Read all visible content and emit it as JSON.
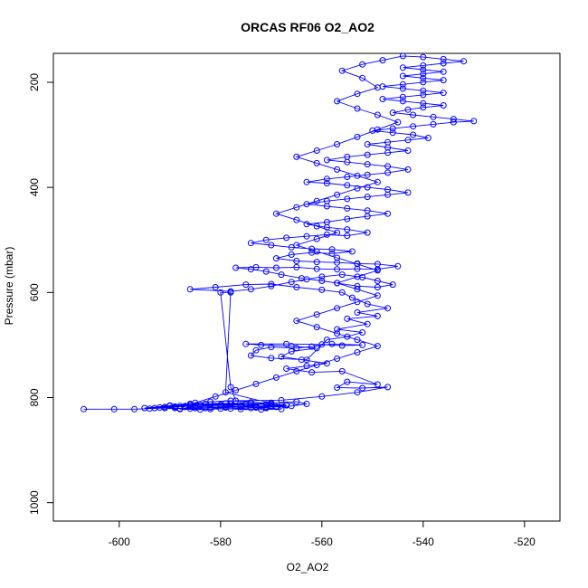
{
  "chart_data": {
    "type": "scatter",
    "title": "ORCAS RF06 O2_AO2",
    "xlabel": "O2_AO2",
    "ylabel": "Pressure (mbar)",
    "xlim": [
      -613,
      -513
    ],
    "ylim": [
      1035,
      145
    ],
    "y_axis_reversed": true,
    "xticks": [
      -600,
      -580,
      -560,
      -540,
      -520
    ],
    "yticks": [
      200,
      400,
      600,
      800,
      1000
    ],
    "grid": false,
    "legend": "none",
    "series": [
      {
        "style": "points-connected-by-lines",
        "marker": "open-circle",
        "color": "#0000ff",
        "points": [
          [
            -607,
            822
          ],
          [
            -601,
            822
          ],
          [
            -597,
            822
          ],
          [
            -594,
            821
          ],
          [
            -591,
            820
          ],
          [
            -588,
            821
          ],
          [
            -585,
            820
          ],
          [
            -582,
            819
          ],
          [
            -579,
            818
          ],
          [
            -576,
            818
          ],
          [
            -573,
            817
          ],
          [
            -570,
            816
          ],
          [
            -568,
            815
          ],
          [
            -571,
            819
          ],
          [
            -574,
            820
          ],
          [
            -578,
            821
          ],
          [
            -582,
            822
          ],
          [
            -586,
            821
          ],
          [
            -589,
            820
          ],
          [
            -591,
            818
          ],
          [
            -588,
            816
          ],
          [
            -584,
            815
          ],
          [
            -580,
            814
          ],
          [
            -576,
            815
          ],
          [
            -572,
            816
          ],
          [
            -569,
            817
          ],
          [
            -567,
            814
          ],
          [
            -571,
            813
          ],
          [
            -575,
            812
          ],
          [
            -579,
            811
          ],
          [
            -583,
            812
          ],
          [
            -586,
            814
          ],
          [
            -590,
            815
          ],
          [
            -587,
            818
          ],
          [
            -583,
            820
          ],
          [
            -579,
            819
          ],
          [
            -575,
            818
          ],
          [
            -571,
            820
          ],
          [
            -568,
            822
          ],
          [
            -572,
            823
          ],
          [
            -576,
            822
          ],
          [
            -580,
            821
          ],
          [
            -584,
            823
          ],
          [
            -588,
            822
          ],
          [
            -585,
            817
          ],
          [
            -581,
            816
          ],
          [
            -577,
            817
          ],
          [
            -573,
            819
          ],
          [
            -569,
            818
          ],
          [
            -566,
            816
          ],
          [
            -563,
            812
          ],
          [
            -565,
            808
          ],
          [
            -570,
            810
          ],
          [
            -575,
            813
          ],
          [
            -580,
            814
          ],
          [
            -584,
            815
          ],
          [
            -587,
            816
          ],
          [
            -589,
            817
          ],
          [
            -592,
            819
          ],
          [
            -595,
            820
          ],
          [
            -586,
            812
          ],
          [
            -582,
            808
          ],
          [
            -578,
            806
          ],
          [
            -574,
            809
          ],
          [
            -570,
            811
          ],
          [
            -579,
            790
          ],
          [
            -578,
            600
          ],
          [
            -580,
            600
          ],
          [
            -578,
            780
          ],
          [
            -577,
            806
          ],
          [
            -568,
            805
          ],
          [
            -560,
            798
          ],
          [
            -553,
            790
          ],
          [
            -547,
            780
          ],
          [
            -552,
            782
          ],
          [
            -557,
            781
          ],
          [
            -555,
            770
          ],
          [
            -549,
            775
          ],
          [
            -556,
            750
          ],
          [
            -562,
            752
          ],
          [
            -567,
            745
          ],
          [
            -563,
            740
          ],
          [
            -559,
            735
          ],
          [
            -564,
            728
          ],
          [
            -568,
            722
          ],
          [
            -566,
            712
          ],
          [
            -561,
            706
          ],
          [
            -566,
            702
          ],
          [
            -572,
            700
          ],
          [
            -575,
            698
          ],
          [
            -567,
            698
          ],
          [
            -560,
            699
          ],
          [
            -556,
            701
          ],
          [
            -552,
            700
          ],
          [
            -558,
            698
          ],
          [
            -562,
            703
          ],
          [
            -565,
            706
          ],
          [
            -570,
            704
          ],
          [
            -573,
            710
          ],
          [
            -574,
            720
          ],
          [
            -570,
            725
          ],
          [
            -563,
            728
          ],
          [
            -559,
            690
          ],
          [
            -555,
            684
          ],
          [
            -552,
            676
          ],
          [
            -557,
            670
          ],
          [
            -551,
            660
          ],
          [
            -555,
            650
          ],
          [
            -549,
            645
          ],
          [
            -553,
            638
          ],
          [
            -547,
            630
          ],
          [
            -551,
            622
          ],
          [
            -554,
            610
          ],
          [
            -556,
            600
          ],
          [
            -560,
            595
          ],
          [
            -565,
            590
          ],
          [
            -570,
            584
          ],
          [
            -575,
            585
          ],
          [
            -581,
            590
          ],
          [
            -586,
            594
          ],
          [
            -578,
            598
          ],
          [
            -574,
            594
          ],
          [
            -570,
            588
          ],
          [
            -566,
            580
          ],
          [
            -563,
            575
          ],
          [
            -560,
            570
          ],
          [
            -556,
            566
          ],
          [
            -552,
            571
          ],
          [
            -549,
            578
          ],
          [
            -546,
            585
          ],
          [
            -549,
            590
          ],
          [
            -553,
            588
          ],
          [
            -557,
            582
          ],
          [
            -560,
            578
          ],
          [
            -564,
            573
          ],
          [
            -568,
            566
          ],
          [
            -571,
            560
          ],
          [
            -574,
            556
          ],
          [
            -577,
            553
          ],
          [
            -573,
            552
          ],
          [
            -569,
            553
          ],
          [
            -565,
            552
          ],
          [
            -561,
            555
          ],
          [
            -557,
            556
          ],
          [
            -553,
            555
          ],
          [
            -549,
            556
          ],
          [
            -545,
            550
          ],
          [
            -549,
            546
          ],
          [
            -553,
            545
          ],
          [
            -557,
            543
          ],
          [
            -561,
            542
          ],
          [
            -565,
            540
          ],
          [
            -569,
            535
          ],
          [
            -566,
            528
          ],
          [
            -562,
            524
          ],
          [
            -558,
            526
          ],
          [
            -554,
            522
          ],
          [
            -558,
            518
          ],
          [
            -562,
            517
          ],
          [
            -566,
            514
          ],
          [
            -570,
            510
          ],
          [
            -574,
            506
          ],
          [
            -571,
            500
          ],
          [
            -567,
            496
          ],
          [
            -563,
            493
          ],
          [
            -559,
            490
          ],
          [
            -555,
            492
          ],
          [
            -551,
            486
          ],
          [
            -555,
            480
          ],
          [
            -559,
            476
          ],
          [
            -563,
            470
          ],
          [
            -559,
            466
          ],
          [
            -555,
            460
          ],
          [
            -551,
            455
          ],
          [
            -547,
            450
          ],
          [
            -551,
            444
          ],
          [
            -555,
            440
          ],
          [
            -559,
            436
          ],
          [
            -563,
            432
          ],
          [
            -559,
            426
          ],
          [
            -555,
            422
          ],
          [
            -551,
            418
          ],
          [
            -547,
            414
          ],
          [
            -543,
            410
          ],
          [
            -547,
            404
          ],
          [
            -551,
            400
          ],
          [
            -555,
            396
          ],
          [
            -559,
            392
          ],
          [
            -563,
            390
          ],
          [
            -559,
            384
          ],
          [
            -555,
            380
          ],
          [
            -551,
            376
          ],
          [
            -547,
            372
          ],
          [
            -543,
            366
          ],
          [
            -547,
            360
          ],
          [
            -551,
            356
          ],
          [
            -555,
            352
          ],
          [
            -559,
            348
          ],
          [
            -555,
            342
          ],
          [
            -551,
            338
          ],
          [
            -547,
            334
          ],
          [
            -543,
            330
          ],
          [
            -547,
            324
          ],
          [
            -551,
            318
          ],
          [
            -547,
            314
          ],
          [
            -543,
            310
          ],
          [
            -539,
            306
          ],
          [
            -542,
            300
          ],
          [
            -546,
            296
          ],
          [
            -550,
            292
          ],
          [
            -546,
            288
          ],
          [
            -542,
            284
          ],
          [
            -538,
            280
          ],
          [
            -534,
            276
          ],
          [
            -530,
            274
          ],
          [
            -534,
            270
          ],
          [
            -538,
            266
          ],
          [
            -542,
            262
          ],
          [
            -546,
            258
          ],
          [
            -543,
            252
          ],
          [
            -540,
            248
          ],
          [
            -536,
            244
          ],
          [
            -540,
            240
          ],
          [
            -544,
            236
          ],
          [
            -548,
            232
          ],
          [
            -544,
            228
          ],
          [
            -540,
            224
          ],
          [
            -536,
            220
          ],
          [
            -540,
            216
          ],
          [
            -544,
            212
          ],
          [
            -548,
            208
          ],
          [
            -544,
            204
          ],
          [
            -540,
            200
          ],
          [
            -536,
            196
          ],
          [
            -540,
            192
          ],
          [
            -544,
            188
          ],
          [
            -540,
            184
          ],
          [
            -536,
            180
          ],
          [
            -540,
            176
          ],
          [
            -544,
            172
          ],
          [
            -540,
            168
          ],
          [
            -536,
            164
          ],
          [
            -532,
            160
          ],
          [
            -536,
            156
          ],
          [
            -540,
            152
          ],
          [
            -544,
            150
          ],
          [
            -548,
            158
          ],
          [
            -552,
            166
          ],
          [
            -556,
            178
          ],
          [
            -552,
            192
          ],
          [
            -549,
            210
          ],
          [
            -553,
            222
          ],
          [
            -557,
            236
          ],
          [
            -553,
            250
          ],
          [
            -549,
            262
          ],
          [
            -545,
            276
          ],
          [
            -549,
            290
          ],
          [
            -553,
            304
          ],
          [
            -557,
            318
          ],
          [
            -561,
            330
          ],
          [
            -565,
            342
          ],
          [
            -561,
            354
          ],
          [
            -557,
            366
          ],
          [
            -553,
            378
          ],
          [
            -549,
            390
          ],
          [
            -553,
            402
          ],
          [
            -557,
            414
          ],
          [
            -561,
            426
          ],
          [
            -565,
            438
          ],
          [
            -569,
            450
          ],
          [
            -565,
            462
          ],
          [
            -561,
            474
          ],
          [
            -557,
            486
          ],
          [
            -561,
            498
          ],
          [
            -565,
            510
          ],
          [
            -561,
            522
          ],
          [
            -557,
            534
          ],
          [
            -553,
            546
          ],
          [
            -549,
            558
          ],
          [
            -553,
            570
          ],
          [
            -557,
            582
          ],
          [
            -553,
            594
          ],
          [
            -549,
            606
          ],
          [
            -553,
            618
          ],
          [
            -557,
            630
          ],
          [
            -561,
            642
          ],
          [
            -565,
            654
          ],
          [
            -561,
            666
          ],
          [
            -557,
            678
          ],
          [
            -553,
            690
          ],
          [
            -549,
            702
          ],
          [
            -553,
            714
          ],
          [
            -557,
            726
          ],
          [
            -561,
            738
          ],
          [
            -565,
            750
          ],
          [
            -569,
            762
          ],
          [
            -573,
            774
          ],
          [
            -577,
            786
          ],
          [
            -581,
            798
          ],
          [
            -585,
            810
          ],
          [
            -589,
            818
          ],
          [
            -593,
            820
          ],
          [
            -590,
            816
          ],
          [
            -586,
            814
          ],
          [
            -582,
            813
          ],
          [
            -578,
            812
          ],
          [
            -574,
            811
          ],
          [
            -570,
            813
          ],
          [
            -567,
            815
          ],
          [
            -571,
            818
          ]
        ]
      }
    ]
  }
}
